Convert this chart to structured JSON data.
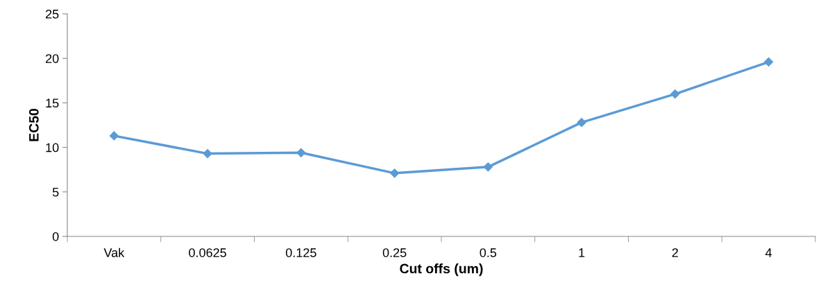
{
  "chart_data": {
    "type": "line",
    "xlabel": "Cut offs (um)",
    "ylabel": "EC50",
    "categories": [
      "Vak",
      "0.0625",
      "0.125",
      "0.25",
      "0.5",
      "1",
      "2",
      "4"
    ],
    "series": [
      {
        "color": "#5b9bd5",
        "values": [
          11.3,
          9.3,
          9.4,
          7.1,
          7.8,
          12.8,
          16.0,
          19.6
        ]
      }
    ],
    "ylim": [
      0,
      25
    ],
    "yticks": [
      0,
      5,
      10,
      15,
      20,
      25
    ],
    "grid": false,
    "legend": false,
    "marker": "diamond",
    "line_style": "solid"
  }
}
